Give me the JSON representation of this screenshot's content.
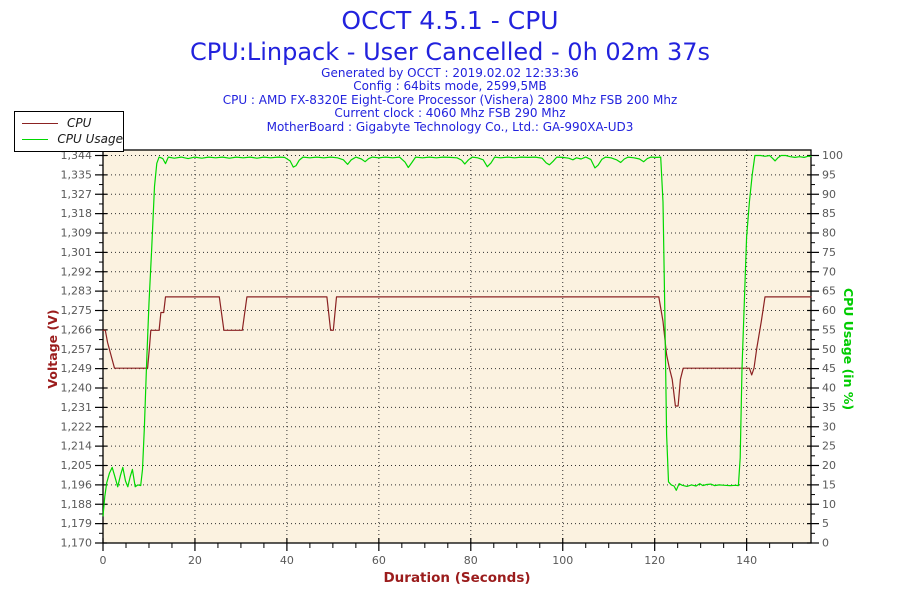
{
  "header": {
    "title": "OCCT 4.5.1 - CPU",
    "subtitle": "CPU:Linpack - User Cancelled - 0h 02m 37s",
    "info_lines": [
      "Generated by OCCT : 2019.02.02 12:33:36",
      "Config : 64bits mode, 2599,5MB",
      "CPU : AMD FX-8320E Eight-Core Processor (Vishera) 2800 Mhz FSB 200 Mhz",
      "Current clock : 4060 Mhz FSB 290 Mhz",
      "MotherBoard : Gigabyte Technology Co., Ltd.: GA-990XA-UD3"
    ]
  },
  "legend": {
    "items": [
      {
        "label": "CPU",
        "color": "#8b2222"
      },
      {
        "label": "CPU Usage",
        "color": "#00d800"
      }
    ]
  },
  "colors": {
    "title_blue": "#2222dd",
    "voltage_red": "#9b1c1c",
    "usage_green": "#00cc00",
    "plot_bg": "#fbf2e0",
    "grid": "#303030",
    "axis": "#000000",
    "tick_label": "#595959"
  },
  "chart_data": {
    "type": "line",
    "xlabel": "Duration (Seconds)",
    "grid": "dotted",
    "legend_position": "top-left",
    "x_range": [
      0,
      154
    ],
    "x_major_ticks": [
      0,
      20,
      40,
      60,
      80,
      100,
      120,
      140
    ],
    "x_minor_tick_step": 5,
    "y_left": {
      "label": "Voltage (V)",
      "min": 1.17,
      "max": 1.344,
      "tick_labels": [
        "1,344",
        "1,335",
        "1,327",
        "1,318",
        "1,309",
        "1,301",
        "1,292",
        "1,283",
        "1,275",
        "1,266",
        "1,257",
        "1,249",
        "1,240",
        "1,231",
        "1,222",
        "1,214",
        "1,205",
        "1,196",
        "1,188",
        "1,179",
        "1,170"
      ]
    },
    "y_right": {
      "label": "CPU Usage (in %)",
      "min": 0,
      "max": 100,
      "tick_step": 5
    },
    "series": [
      {
        "name": "CPU",
        "axis": "left",
        "color": "#8b2222",
        "points": [
          [
            0,
            1.2655
          ],
          [
            0.5,
            1.2655
          ],
          [
            1,
            1.26
          ],
          [
            2.5,
            1.2485
          ],
          [
            9.7,
            1.2485
          ],
          [
            10.1,
            1.2575
          ],
          [
            10.4,
            1.2655
          ],
          [
            12.2,
            1.2655
          ],
          [
            12.6,
            1.2735
          ],
          [
            13.2,
            1.2735
          ],
          [
            13.6,
            1.2805
          ],
          [
            25.3,
            1.2805
          ],
          [
            26.3,
            1.2655
          ],
          [
            30.3,
            1.2655
          ],
          [
            31.3,
            1.2805
          ],
          [
            48.7,
            1.2805
          ],
          [
            49.5,
            1.2655
          ],
          [
            50.1,
            1.2655
          ],
          [
            50.8,
            1.2805
          ],
          [
            120.9,
            1.2805
          ],
          [
            121.8,
            1.2695
          ],
          [
            122.6,
            1.2545
          ],
          [
            123.2,
            1.2485
          ],
          [
            123.8,
            1.2435
          ],
          [
            124.5,
            1.2315
          ],
          [
            125.1,
            1.2315
          ],
          [
            125.6,
            1.2435
          ],
          [
            126.2,
            1.2485
          ],
          [
            140.6,
            1.2485
          ],
          [
            141.1,
            1.2455
          ],
          [
            141.6,
            1.2485
          ],
          [
            142.2,
            1.2575
          ],
          [
            143.2,
            1.2695
          ],
          [
            144,
            1.2805
          ],
          [
            154,
            1.2805
          ]
        ]
      },
      {
        "name": "CPU Usage",
        "axis": "right",
        "color": "#00d800",
        "points": [
          [
            0,
            7
          ],
          [
            0.4,
            12
          ],
          [
            0.8,
            15.5
          ],
          [
            1.4,
            18
          ],
          [
            2,
            19.5
          ],
          [
            2.6,
            17
          ],
          [
            3.2,
            14.5
          ],
          [
            3.8,
            17.5
          ],
          [
            4.3,
            19.5
          ],
          [
            4.9,
            16
          ],
          [
            5.4,
            14.5
          ],
          [
            5.9,
            17
          ],
          [
            6.4,
            19
          ],
          [
            7,
            14.5
          ],
          [
            7.6,
            15
          ],
          [
            8.2,
            14.8
          ],
          [
            8.6,
            19
          ],
          [
            9,
            30
          ],
          [
            9.5,
            47
          ],
          [
            10,
            62
          ],
          [
            10.6,
            76
          ],
          [
            11.2,
            92
          ],
          [
            11.7,
            98
          ],
          [
            12.2,
            99.6
          ],
          [
            13,
            99.2
          ],
          [
            13.6,
            97.9
          ],
          [
            14.2,
            99.6
          ],
          [
            15.5,
            99.3
          ],
          [
            17,
            99.6
          ],
          [
            18.5,
            99.2
          ],
          [
            20,
            99.6
          ],
          [
            21.5,
            99.3
          ],
          [
            23,
            99.6
          ],
          [
            24.5,
            99.4
          ],
          [
            26,
            99.6
          ],
          [
            27.5,
            99.3
          ],
          [
            29,
            99.6
          ],
          [
            30.5,
            99.4
          ],
          [
            32,
            99.6
          ],
          [
            33.5,
            99.3
          ],
          [
            35,
            99.6
          ],
          [
            36.5,
            99.4
          ],
          [
            38,
            99.6
          ],
          [
            39.5,
            99.5
          ],
          [
            40.7,
            98.6
          ],
          [
            41.4,
            97
          ],
          [
            42,
            97.4
          ],
          [
            42.7,
            98.8
          ],
          [
            43.5,
            99.6
          ],
          [
            45,
            99.4
          ],
          [
            46.5,
            99.6
          ],
          [
            48,
            99.4
          ],
          [
            49.5,
            99.6
          ],
          [
            51,
            99.4
          ],
          [
            52.3,
            98.9
          ],
          [
            53.2,
            97.7
          ],
          [
            54,
            98.9
          ],
          [
            55,
            99.6
          ],
          [
            56.2,
            99.1
          ],
          [
            57,
            98.4
          ],
          [
            57.8,
            99.2
          ],
          [
            58.6,
            99.6
          ],
          [
            60,
            99.4
          ],
          [
            61.5,
            99.6
          ],
          [
            63,
            99.4
          ],
          [
            64.5,
            99.6
          ],
          [
            65.7,
            98.3
          ],
          [
            66.4,
            96.9
          ],
          [
            67.2,
            98.2
          ],
          [
            68,
            99.6
          ],
          [
            69.5,
            99.4
          ],
          [
            71,
            99.6
          ],
          [
            72.5,
            99.4
          ],
          [
            74,
            99.6
          ],
          [
            75.5,
            99.5
          ],
          [
            77,
            99.4
          ],
          [
            78,
            98.8
          ],
          [
            78.7,
            97.8
          ],
          [
            79.5,
            98.9
          ],
          [
            80.3,
            99.6
          ],
          [
            81.5,
            99.4
          ],
          [
            82.7,
            98.9
          ],
          [
            83.6,
            97.1
          ],
          [
            84.4,
            98.1
          ],
          [
            85.2,
            99.6
          ],
          [
            86.5,
            99.4
          ],
          [
            88,
            99.6
          ],
          [
            89.5,
            99.4
          ],
          [
            91,
            99.6
          ],
          [
            92.5,
            99.5
          ],
          [
            94,
            99.6
          ],
          [
            95.5,
            99.3
          ],
          [
            96.4,
            98.1
          ],
          [
            97.1,
            97.6
          ],
          [
            97.9,
            98.5
          ],
          [
            98.7,
            99.6
          ],
          [
            100,
            99.5
          ],
          [
            101.3,
            99.3
          ],
          [
            102.2,
            98.9
          ],
          [
            103,
            99.4
          ],
          [
            104,
            99.1
          ],
          [
            105,
            99.6
          ],
          [
            106.1,
            99
          ],
          [
            107,
            96.8
          ],
          [
            107.7,
            97.5
          ],
          [
            108.5,
            99
          ],
          [
            109.3,
            99.6
          ],
          [
            110.5,
            99.4
          ],
          [
            111.7,
            98.9
          ],
          [
            112.6,
            98.2
          ],
          [
            113.4,
            99.1
          ],
          [
            114.2,
            99.6
          ],
          [
            115.5,
            99.4
          ],
          [
            116.7,
            99.1
          ],
          [
            117.6,
            98.4
          ],
          [
            118.4,
            99.2
          ],
          [
            119.2,
            99.6
          ],
          [
            120.5,
            99.5
          ],
          [
            121.3,
            99.6
          ],
          [
            121.8,
            88
          ],
          [
            122.2,
            60
          ],
          [
            122.6,
            28
          ],
          [
            123,
            15.8
          ],
          [
            123.6,
            15
          ],
          [
            124.2,
            14.7
          ],
          [
            124.7,
            13.6
          ],
          [
            125.3,
            15.3
          ],
          [
            126,
            14.9
          ],
          [
            127,
            14.6
          ],
          [
            128,
            15
          ],
          [
            129,
            14.7
          ],
          [
            129.8,
            15.3
          ],
          [
            130.5,
            14.8
          ],
          [
            131.3,
            15.1
          ],
          [
            132.2,
            15.2
          ],
          [
            133,
            14.8
          ],
          [
            134,
            15
          ],
          [
            135.2,
            14.9
          ],
          [
            136.4,
            14.8
          ],
          [
            137.6,
            14.9
          ],
          [
            138.2,
            14.8
          ],
          [
            138.6,
            22
          ],
          [
            139,
            45
          ],
          [
            139.5,
            62
          ],
          [
            140,
            79
          ],
          [
            140.6,
            88
          ],
          [
            141.2,
            95
          ],
          [
            141.8,
            100
          ],
          [
            143,
            100
          ],
          [
            144,
            99.8
          ],
          [
            145,
            100
          ],
          [
            145.7,
            99.2
          ],
          [
            146.2,
            98.6
          ],
          [
            146.8,
            99.4
          ],
          [
            147.5,
            100
          ],
          [
            148.5,
            100
          ],
          [
            149.5,
            99.7
          ],
          [
            150.5,
            99.5
          ],
          [
            151.5,
            99.7
          ],
          [
            152.5,
            99.5
          ],
          [
            153.3,
            99.8
          ],
          [
            154,
            99.8
          ]
        ]
      }
    ]
  }
}
